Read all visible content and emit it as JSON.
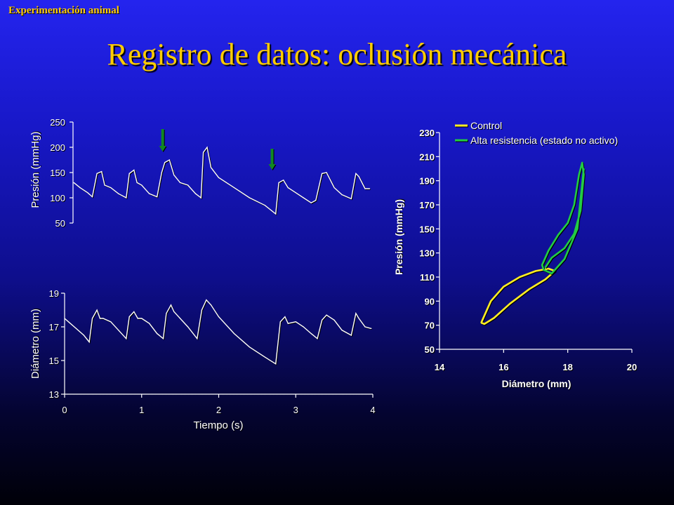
{
  "header": {
    "tag": "Experimentación animal"
  },
  "title": "Registro de datos: oclusión mecánica",
  "colors": {
    "title": "#ffcc00",
    "trace": "#ffffff",
    "control": "#ffee22",
    "alta": "#22cc44",
    "arrow": "#118822"
  },
  "chart_data": [
    {
      "type": "line",
      "ylabel": "Presión (mmHg)",
      "xlabel": "",
      "yticks": [
        "50",
        "100",
        "150",
        "200",
        "250"
      ],
      "ylim": [
        50,
        250
      ],
      "xlim": [
        0,
        4
      ],
      "arrows_at_x": [
        1.3,
        2.72
      ],
      "series": [
        {
          "x": [
            0.12,
            0.2,
            0.3,
            0.36,
            0.42,
            0.48,
            0.52,
            0.6,
            0.7,
            0.8,
            0.84,
            0.9,
            0.94,
            1.0,
            1.1,
            1.2,
            1.26,
            1.3,
            1.36,
            1.42,
            1.5,
            1.6,
            1.7,
            1.77,
            1.8,
            1.85,
            1.9,
            2.0,
            2.2,
            2.4,
            2.6,
            2.74,
            2.78,
            2.84,
            2.9,
            3.0,
            3.1,
            3.2,
            3.26,
            3.34,
            3.4,
            3.5,
            3.6,
            3.72,
            3.78,
            3.82,
            3.9,
            3.96
          ],
          "y": [
            130,
            120,
            110,
            102,
            148,
            152,
            125,
            120,
            108,
            100,
            148,
            155,
            130,
            125,
            108,
            102,
            150,
            170,
            175,
            145,
            130,
            125,
            108,
            100,
            190,
            200,
            160,
            140,
            120,
            100,
            85,
            68,
            130,
            135,
            120,
            110,
            100,
            90,
            95,
            148,
            150,
            120,
            106,
            98,
            148,
            142,
            118,
            118
          ]
        }
      ]
    },
    {
      "type": "line",
      "ylabel": "Diámetro (mm)",
      "xlabel": "Tiempo (s)",
      "yticks": [
        "13",
        "15",
        "17",
        "19"
      ],
      "xticks": [
        "0",
        "1",
        "2",
        "3",
        "4"
      ],
      "ylim": [
        13,
        19
      ],
      "xlim": [
        0,
        4
      ],
      "series": [
        {
          "x": [
            0.0,
            0.05,
            0.15,
            0.25,
            0.32,
            0.36,
            0.42,
            0.46,
            0.5,
            0.6,
            0.7,
            0.8,
            0.84,
            0.9,
            0.95,
            1.0,
            1.1,
            1.2,
            1.28,
            1.32,
            1.38,
            1.42,
            1.5,
            1.6,
            1.72,
            1.78,
            1.84,
            1.9,
            2.0,
            2.2,
            2.4,
            2.6,
            2.74,
            2.8,
            2.86,
            2.9,
            3.0,
            3.1,
            3.2,
            3.28,
            3.34,
            3.4,
            3.5,
            3.6,
            3.72,
            3.78,
            3.82,
            3.9,
            3.98
          ],
          "y": [
            17.5,
            17.3,
            16.9,
            16.5,
            16.1,
            17.5,
            18.0,
            17.5,
            17.5,
            17.3,
            16.8,
            16.3,
            17.6,
            17.9,
            17.5,
            17.5,
            17.2,
            16.6,
            16.3,
            17.8,
            18.3,
            17.9,
            17.5,
            17.0,
            16.3,
            18.0,
            18.6,
            18.3,
            17.6,
            16.6,
            15.8,
            15.2,
            14.8,
            17.3,
            17.6,
            17.2,
            17.3,
            17.0,
            16.6,
            16.3,
            17.4,
            17.7,
            17.4,
            16.8,
            16.5,
            17.8,
            17.5,
            17.0,
            16.9
          ]
        }
      ]
    },
    {
      "type": "line",
      "xlabel": "Diámetro (mm)",
      "ylabel": "Presión (mmHg)",
      "xticks": [
        "14",
        "16",
        "18",
        "20"
      ],
      "yticks": [
        "50",
        "70",
        "90",
        "110",
        "130",
        "150",
        "170",
        "190",
        "210",
        "230"
      ],
      "xlim": [
        14,
        20
      ],
      "ylim": [
        50,
        230
      ],
      "legend": "top-left",
      "series": [
        {
          "name": "Control",
          "x": [
            15.3,
            15.4,
            15.7,
            16.2,
            16.8,
            17.3,
            17.6,
            17.4,
            17.0,
            16.5,
            16.0,
            15.6,
            15.3
          ],
          "y": [
            72,
            71,
            76,
            88,
            100,
            108,
            115,
            117,
            115,
            110,
            102,
            90,
            72
          ]
        },
        {
          "name": "Alta resistencia (estado no activo)",
          "x": [
            17.3,
            17.5,
            17.9,
            18.2,
            18.4,
            18.5,
            18.45,
            18.35,
            18.2,
            18.0,
            17.7,
            17.4,
            17.2,
            17.25,
            17.5,
            17.9,
            18.3,
            18.5
          ],
          "y": [
            118,
            126,
            134,
            146,
            165,
            195,
            205,
            195,
            170,
            155,
            145,
            132,
            120,
            116,
            113,
            125,
            150,
            200
          ]
        }
      ]
    }
  ]
}
